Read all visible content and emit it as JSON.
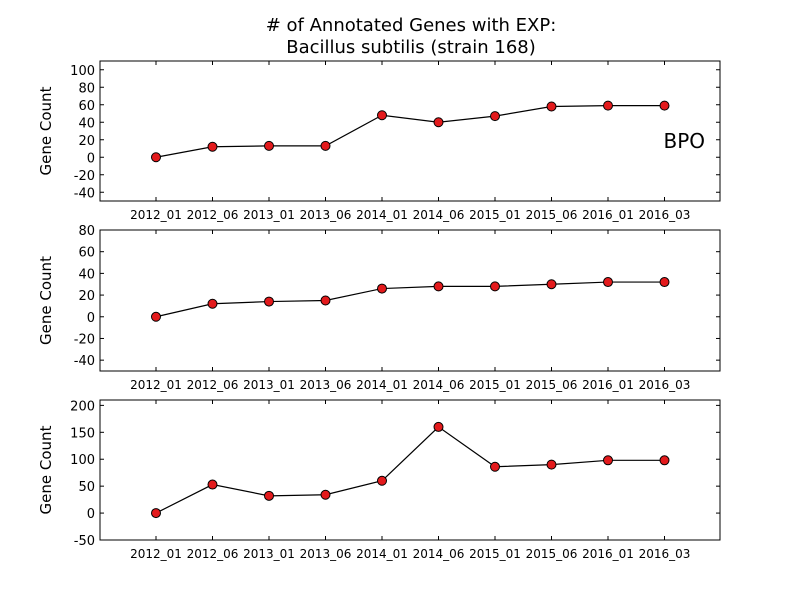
{
  "title_line1": "# of Annotated Genes with EXP:",
  "title_line2": "Bacillus subtilis (strain 168)",
  "chart_data": [
    {
      "type": "line",
      "panel_label": "BPO",
      "ylabel": "Gene Count",
      "categories": [
        "2012_01",
        "2012_06",
        "2013_01",
        "2013_06",
        "2014_01",
        "2014_06",
        "2015_01",
        "2015_06",
        "2016_01",
        "2016_03"
      ],
      "values": [
        0,
        12,
        13,
        13,
        48,
        40,
        47,
        58,
        59,
        59
      ],
      "ylim": [
        -50,
        110
      ],
      "yticks": [
        -40,
        -20,
        0,
        20,
        40,
        60,
        80,
        100
      ],
      "colors": {
        "line": "#000000",
        "marker": "#e31a1c"
      }
    },
    {
      "type": "line",
      "panel_label": "",
      "ylabel": "Gene Count",
      "categories": [
        "2012_01",
        "2012_06",
        "2013_01",
        "2013_06",
        "2014_01",
        "2014_06",
        "2015_01",
        "2015_06",
        "2016_01",
        "2016_03"
      ],
      "values": [
        0,
        12,
        14,
        15,
        26,
        28,
        28,
        30,
        32,
        32
      ],
      "ylim": [
        -50,
        80
      ],
      "yticks": [
        -40,
        -20,
        0,
        20,
        40,
        60,
        80
      ],
      "colors": {
        "line": "#000000",
        "marker": "#e31a1c"
      }
    },
    {
      "type": "line",
      "panel_label": "",
      "ylabel": "Gene Count",
      "categories": [
        "2012_01",
        "2012_06",
        "2013_01",
        "2013_06",
        "2014_01",
        "2014_06",
        "2015_01",
        "2015_06",
        "2016_01",
        "2016_03"
      ],
      "values": [
        0,
        53,
        32,
        34,
        60,
        160,
        86,
        90,
        98,
        98
      ],
      "ylim": [
        -50,
        210
      ],
      "yticks": [
        -50,
        0,
        50,
        100,
        150,
        200
      ],
      "colors": {
        "line": "#000000",
        "marker": "#e31a1c"
      }
    }
  ]
}
